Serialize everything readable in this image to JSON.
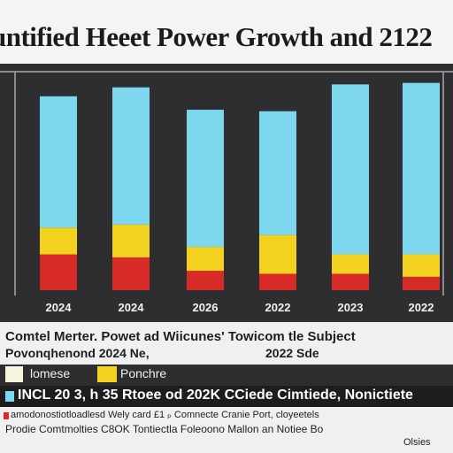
{
  "header": {
    "title": "untified Heeet Power Growth and 2122"
  },
  "chart_data": {
    "type": "bar",
    "stacked": true,
    "categories": [
      "2024",
      "2024",
      "2026",
      "2022",
      "2023",
      "2022"
    ],
    "series": [
      {
        "color": "#d82a26",
        "values": [
          12,
          11,
          6.5,
          5.5,
          5.5,
          4.5
        ]
      },
      {
        "color": "#f2d21e",
        "values": [
          9,
          11,
          8,
          13,
          6.5,
          7.5
        ]
      },
      {
        "color": "#7dd7ee",
        "values": [
          44,
          46,
          46,
          41.5,
          57,
          57.5
        ]
      }
    ],
    "ylim": [
      0,
      70
    ],
    "grid": false
  },
  "legend": {
    "line1": "Comtel Merter. Powet ad Wiicunes' Towicom tle Subject",
    "line2": "Povonqhenond 2024 Ne,",
    "line2_right": "2022 Sde",
    "item1_label": "lomese",
    "item2_label": "Ponchre"
  },
  "footer": {
    "line1": "INCL 20 3, h 35 Rtoee od 202K CCiede Cimtiede, Nonictiete",
    "line2": "amodonostiotloadlesd Wely card  £1 ₚ Comnecte Cranie Port, cloyeetels",
    "line3": "Prodie Comtmolties   C8OK Tontiectla   Foleoono Mallon an Notiee Bo",
    "line4": "Olsies"
  },
  "colors": {
    "background": "#2e2e30",
    "red": "#d82a26",
    "yellow": "#f2d21e",
    "cyan": "#7dd7ee"
  }
}
